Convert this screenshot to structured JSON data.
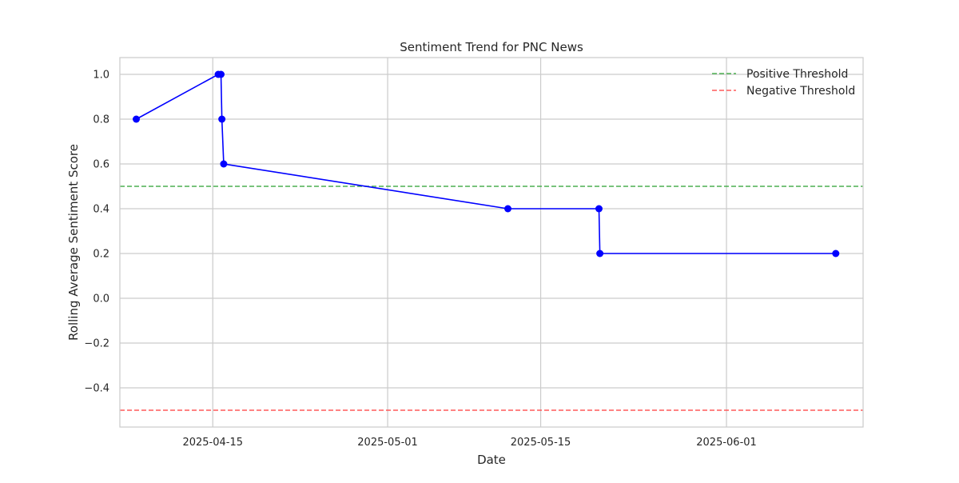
{
  "chart_data": {
    "type": "line",
    "title": "Sentiment Trend for PNC News",
    "xlabel": "Date",
    "ylabel": "Rolling Average Sentiment Score",
    "xlim": [
      "2025-04-06T12:00",
      "2025-06-13T12:00"
    ],
    "ylim": [
      -0.575,
      1.075
    ],
    "x_ticks": [
      "2025-04-15",
      "2025-05-01",
      "2025-05-15",
      "2025-06-01"
    ],
    "y_ticks": [
      -0.4,
      -0.2,
      0.0,
      0.2,
      0.4,
      0.6,
      0.8,
      1.0
    ],
    "y_tick_labels": [
      "−0.4",
      "−0.2",
      "0.0",
      "0.2",
      "0.4",
      "0.6",
      "0.8",
      "1.0"
    ],
    "grid": true,
    "legend_position": "top-right",
    "series": [
      {
        "color": "#0000ff",
        "marker": "circle",
        "points": [
          {
            "x": "2025-04-08",
            "y": 0.8
          },
          {
            "x": "2025-04-15T12:00",
            "y": 1.0
          },
          {
            "x": "2025-04-15T18:00",
            "y": 1.0
          },
          {
            "x": "2025-04-15T20:00",
            "y": 0.8
          },
          {
            "x": "2025-04-16",
            "y": 0.6
          },
          {
            "x": "2025-05-12",
            "y": 0.4
          },
          {
            "x": "2025-05-20T08:00",
            "y": 0.4
          },
          {
            "x": "2025-05-20T10:00",
            "y": 0.2
          },
          {
            "x": "2025-06-11",
            "y": 0.2
          }
        ]
      }
    ],
    "thresholds": [
      {
        "name": "Positive Threshold",
        "y": 0.5,
        "color": "#4caf50"
      },
      {
        "name": "Negative Threshold",
        "y": -0.5,
        "color": "#ff5a5a"
      }
    ]
  }
}
